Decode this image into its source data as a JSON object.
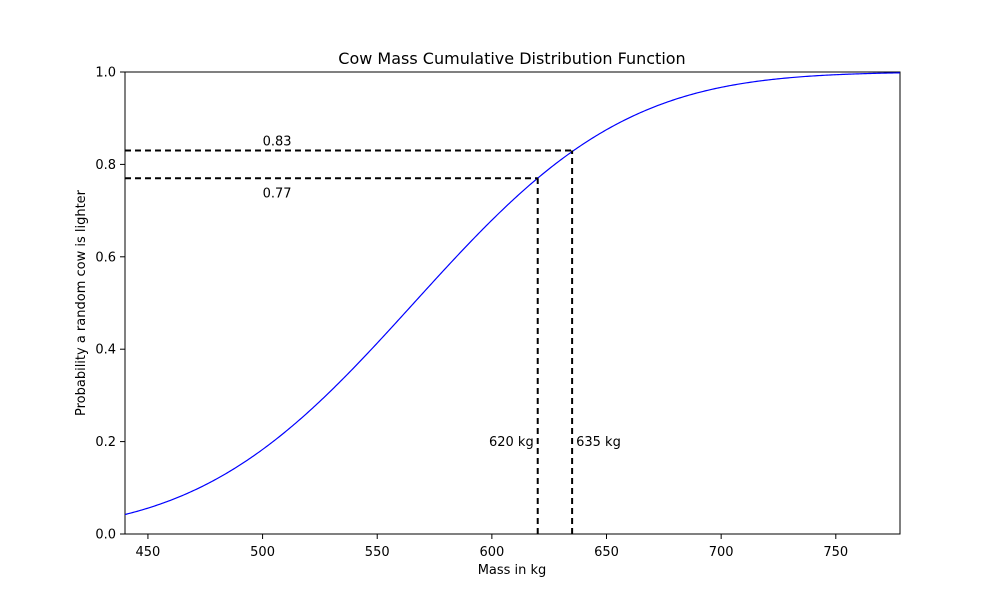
{
  "chart_data": {
    "type": "line",
    "title": "Cow Mass Cumulative Distribution Function",
    "xlabel": "Mass in kg",
    "ylabel": "Probability a random cow is lighter",
    "xlim": [
      440,
      778
    ],
    "ylim": [
      0.0,
      1.0
    ],
    "grid": false,
    "legend": "none",
    "x_ticks": [
      450,
      500,
      550,
      600,
      650,
      700,
      750
    ],
    "x_tick_labels": [
      "450",
      "500",
      "550",
      "600",
      "650",
      "700",
      "750"
    ],
    "y_ticks": [
      0.0,
      0.2,
      0.4,
      0.6,
      0.8,
      1.0
    ],
    "y_tick_labels": [
      "0.0",
      "0.2",
      "0.4",
      "0.6",
      "0.8",
      "1.0"
    ],
    "series": [
      {
        "type": "normal_cdf",
        "mean": 566,
        "sd": 73,
        "color": "#0000ff"
      }
    ],
    "reference_lines": [
      {
        "x": 620,
        "y": 0.77,
        "x_label": "620 kg",
        "y_label": "0.77",
        "x_label_side": "left",
        "y_label_side": "below",
        "style": "dashed",
        "color": "#000000"
      },
      {
        "x": 635,
        "y": 0.83,
        "x_label": "635 kg",
        "y_label": "0.83",
        "x_label_side": "right",
        "y_label_side": "above",
        "style": "dashed",
        "color": "#000000"
      }
    ]
  }
}
